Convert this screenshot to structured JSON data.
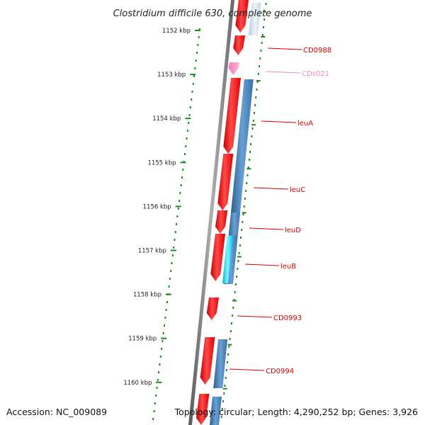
{
  "title": "Clostridium difficile 630, complete genome",
  "accession": "Accession: NC_009089",
  "topology": "Topology: circular; Length: 4,290,252 bp; Genes: 3,926",
  "colors": {
    "cds": "#ff1a1a",
    "ncrna": "#ff7fbf",
    "protein_blue": "#4a86c0",
    "cyan": "#00e0ff",
    "backbone": "#7a7a7a",
    "tick": "#1a8c1a",
    "label": "#d40000",
    "label_pink": "#f08cc8"
  },
  "scale_ticks": [
    "1152 kbp",
    "1153 kbp",
    "1154 kbp",
    "1155 kbp",
    "1156 kbp",
    "1157 kbp",
    "1158 kbp",
    "1159 kbp",
    "1160 kbp"
  ],
  "genes": [
    {
      "name": "CD0988",
      "color_key": "label"
    },
    {
      "name": "CDs021",
      "color_key": "label_pink"
    },
    {
      "name": "leuA",
      "color_key": "label"
    },
    {
      "name": "leuC",
      "color_key": "label"
    },
    {
      "name": "leuD",
      "color_key": "label"
    },
    {
      "name": "leuB",
      "color_key": "label"
    },
    {
      "name": "CD0993",
      "color_key": "label"
    },
    {
      "name": "CD0994",
      "color_key": "label"
    }
  ]
}
